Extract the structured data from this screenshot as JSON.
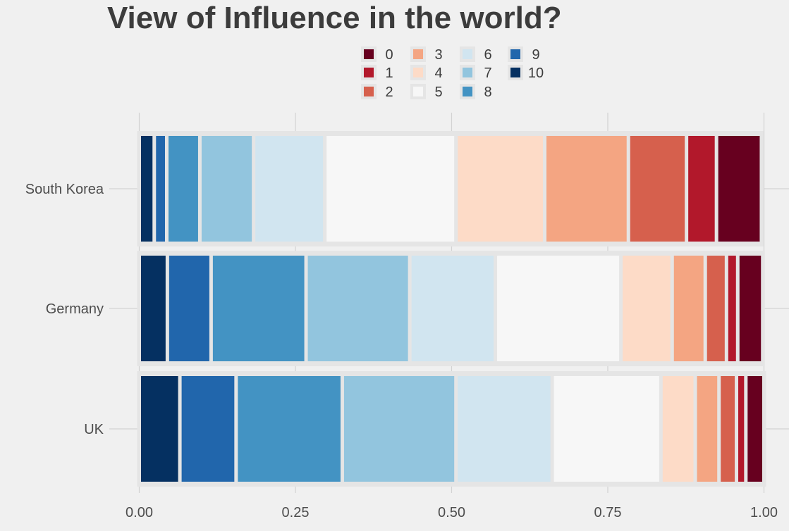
{
  "chart_data": {
    "type": "bar",
    "orientation": "horizontal",
    "stacked": "fill",
    "title": "View of Influence in the world?",
    "xlabel": "",
    "ylabel": "",
    "xlim": [
      0,
      1
    ],
    "x_ticks": [
      "0.00",
      "0.25",
      "0.50",
      "0.75",
      "1.00"
    ],
    "x_tick_values": [
      0,
      0.25,
      0.5,
      0.75,
      1
    ],
    "grid": true,
    "legend_position": "top",
    "categories": [
      "South Korea",
      "Germany",
      "UK"
    ],
    "series": [
      {
        "name": "10",
        "color": "#053061",
        "values": [
          0.024,
          0.045,
          0.065
        ]
      },
      {
        "name": "9",
        "color": "#2166ac",
        "values": [
          0.02,
          0.07,
          0.09
        ]
      },
      {
        "name": "8",
        "color": "#4393c3",
        "values": [
          0.053,
          0.152,
          0.17
        ]
      },
      {
        "name": "7",
        "color": "#92c5de",
        "values": [
          0.086,
          0.166,
          0.182
        ]
      },
      {
        "name": "6",
        "color": "#d1e5f0",
        "values": [
          0.114,
          0.137,
          0.154
        ]
      },
      {
        "name": "5",
        "color": "#f7f7f7",
        "values": [
          0.21,
          0.201,
          0.174
        ]
      },
      {
        "name": "4",
        "color": "#fddbc7",
        "values": [
          0.142,
          0.082,
          0.055
        ]
      },
      {
        "name": "3",
        "color": "#f4a582",
        "values": [
          0.134,
          0.053,
          0.038
        ]
      },
      {
        "name": "2",
        "color": "#d6604d",
        "values": [
          0.093,
          0.034,
          0.028
        ]
      },
      {
        "name": "1",
        "color": "#b2182b",
        "values": [
          0.048,
          0.018,
          0.015
        ]
      },
      {
        "name": "0",
        "color": "#67001f",
        "values": [
          0.072,
          0.04,
          0.029
        ]
      }
    ],
    "legend_order": [
      "0",
      "1",
      "2",
      "3",
      "4",
      "5",
      "6",
      "7",
      "8",
      "9",
      "10"
    ]
  }
}
